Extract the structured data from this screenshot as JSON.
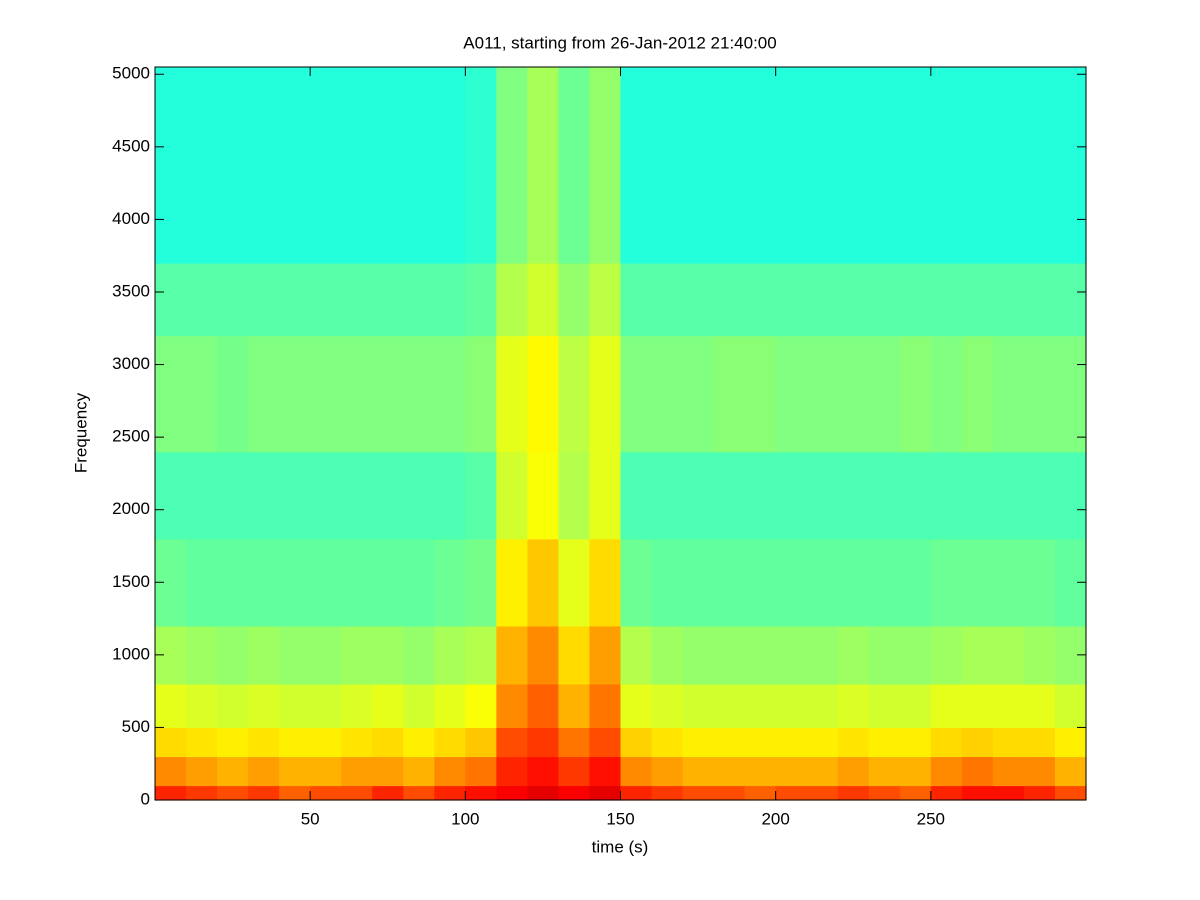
{
  "chart_data": {
    "type": "spectrogram",
    "title": "A011, starting from 26-Jan-2012 21:40:00",
    "x_label": "time (s)",
    "y_label": "Frequency",
    "colormap": "jet",
    "xlim": [
      0,
      300
    ],
    "ylim": [
      0,
      5050
    ],
    "xticks": [
      50,
      100,
      150,
      200,
      250
    ],
    "yticks": [
      0,
      500,
      1000,
      1500,
      2000,
      2500,
      3000,
      3500,
      4000,
      4500,
      5000
    ],
    "xbins": [
      0,
      10,
      20,
      30,
      40,
      50,
      60,
      70,
      80,
      90,
      100,
      110,
      120,
      130,
      140,
      150,
      160,
      170,
      180,
      190,
      200,
      210,
      220,
      230,
      240,
      250,
      260,
      270,
      280,
      290,
      300
    ],
    "ybins": [
      0,
      100,
      300,
      500,
      800,
      1200,
      1800,
      2400,
      3200,
      3700,
      5050
    ],
    "z": [
      [
        0.84,
        0.82,
        0.8,
        0.82,
        0.78,
        0.8,
        0.8,
        0.84,
        0.8,
        0.84,
        0.86,
        0.88,
        0.9,
        0.88,
        0.9,
        0.84,
        0.82,
        0.8,
        0.8,
        0.78,
        0.8,
        0.8,
        0.82,
        0.8,
        0.78,
        0.84,
        0.86,
        0.86,
        0.84,
        0.8
      ],
      [
        0.74,
        0.72,
        0.7,
        0.72,
        0.7,
        0.7,
        0.72,
        0.72,
        0.7,
        0.74,
        0.76,
        0.84,
        0.86,
        0.82,
        0.86,
        0.74,
        0.72,
        0.7,
        0.7,
        0.7,
        0.7,
        0.7,
        0.72,
        0.7,
        0.7,
        0.74,
        0.76,
        0.74,
        0.74,
        0.7
      ],
      [
        0.66,
        0.65,
        0.64,
        0.65,
        0.64,
        0.64,
        0.65,
        0.66,
        0.64,
        0.66,
        0.68,
        0.8,
        0.82,
        0.76,
        0.8,
        0.67,
        0.65,
        0.64,
        0.64,
        0.64,
        0.64,
        0.64,
        0.65,
        0.64,
        0.64,
        0.66,
        0.67,
        0.66,
        0.66,
        0.64
      ],
      [
        0.6,
        0.59,
        0.58,
        0.59,
        0.58,
        0.58,
        0.59,
        0.6,
        0.58,
        0.6,
        0.62,
        0.74,
        0.78,
        0.7,
        0.76,
        0.6,
        0.59,
        0.58,
        0.58,
        0.58,
        0.58,
        0.58,
        0.59,
        0.58,
        0.58,
        0.6,
        0.6,
        0.6,
        0.6,
        0.58
      ],
      [
        0.54,
        0.53,
        0.52,
        0.53,
        0.52,
        0.52,
        0.53,
        0.53,
        0.52,
        0.54,
        0.55,
        0.7,
        0.74,
        0.66,
        0.72,
        0.55,
        0.53,
        0.52,
        0.52,
        0.52,
        0.52,
        0.52,
        0.53,
        0.52,
        0.52,
        0.53,
        0.54,
        0.54,
        0.53,
        0.52
      ],
      [
        0.48,
        0.47,
        0.47,
        0.47,
        0.47,
        0.47,
        0.47,
        0.47,
        0.47,
        0.48,
        0.49,
        0.64,
        0.68,
        0.6,
        0.66,
        0.48,
        0.47,
        0.47,
        0.47,
        0.47,
        0.47,
        0.47,
        0.47,
        0.47,
        0.47,
        0.48,
        0.48,
        0.48,
        0.48,
        0.47
      ],
      [
        0.45,
        0.45,
        0.45,
        0.45,
        0.45,
        0.45,
        0.45,
        0.45,
        0.45,
        0.45,
        0.46,
        0.58,
        0.62,
        0.55,
        0.6,
        0.45,
        0.45,
        0.45,
        0.45,
        0.45,
        0.45,
        0.45,
        0.45,
        0.45,
        0.45,
        0.45,
        0.45,
        0.45,
        0.45,
        0.45
      ],
      [
        0.5,
        0.5,
        0.49,
        0.5,
        0.5,
        0.5,
        0.5,
        0.5,
        0.5,
        0.5,
        0.51,
        0.6,
        0.63,
        0.56,
        0.6,
        0.5,
        0.5,
        0.5,
        0.51,
        0.51,
        0.5,
        0.5,
        0.5,
        0.5,
        0.51,
        0.5,
        0.51,
        0.5,
        0.5,
        0.5
      ],
      [
        0.46,
        0.46,
        0.46,
        0.46,
        0.46,
        0.46,
        0.46,
        0.46,
        0.46,
        0.46,
        0.47,
        0.55,
        0.58,
        0.52,
        0.56,
        0.46,
        0.46,
        0.46,
        0.46,
        0.46,
        0.46,
        0.46,
        0.46,
        0.46,
        0.46,
        0.46,
        0.46,
        0.46,
        0.46,
        0.46
      ],
      [
        0.41,
        0.41,
        0.41,
        0.41,
        0.41,
        0.41,
        0.41,
        0.41,
        0.41,
        0.41,
        0.42,
        0.5,
        0.54,
        0.48,
        0.52,
        0.41,
        0.41,
        0.41,
        0.41,
        0.41,
        0.41,
        0.41,
        0.41,
        0.41,
        0.41,
        0.41,
        0.41,
        0.41,
        0.41,
        0.41
      ]
    ]
  }
}
